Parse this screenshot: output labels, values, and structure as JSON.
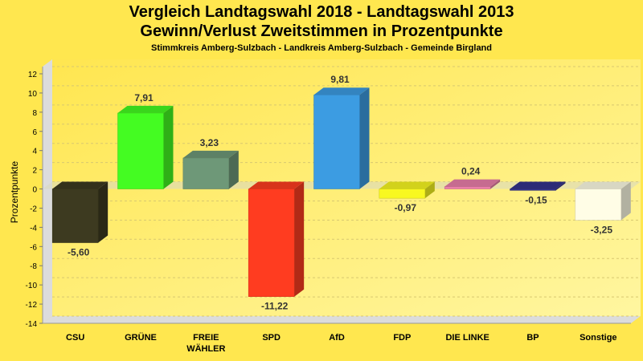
{
  "chart_data": {
    "type": "bar",
    "title": "Vergleich Landtagswahl 2018 - Landtagswahl 2013",
    "subtitle": "Gewinn/Verlust Zweitstimmen in Prozentpunkte",
    "subsubtitle": "Stimmkreis Amberg-Sulzbach - Landkreis Amberg-Sulzbach - Gemeinde Birgland",
    "xlabel": "",
    "ylabel": "Prozentpunkte",
    "ylim": [
      -14,
      12
    ],
    "yticks": [
      12,
      10,
      8,
      6,
      4,
      2,
      0,
      -2,
      -4,
      -6,
      -8,
      -10,
      -12,
      -14
    ],
    "grid": true,
    "categories": [
      "CSU",
      "GRÜNE",
      "FREIE WÄHLER",
      "SPD",
      "AfD",
      "FDP",
      "DIE LINKE",
      "BP",
      "Sonstige"
    ],
    "values": [
      -5.6,
      7.91,
      3.23,
      -11.22,
      9.81,
      -0.97,
      0.24,
      -0.15,
      -3.25
    ],
    "labels": [
      "-5,60",
      "7,91",
      "3,23",
      "-11,22",
      "9,81",
      "-0,97",
      "0,24",
      "-0,15",
      "-3,25"
    ],
    "colors": [
      "#3d3a20",
      "#44fc22",
      "#6e9878",
      "#ff3c20",
      "#3c9ce2",
      "#f8f820",
      "#ea7eaa",
      "#33338c",
      "#fffde6"
    ]
  }
}
